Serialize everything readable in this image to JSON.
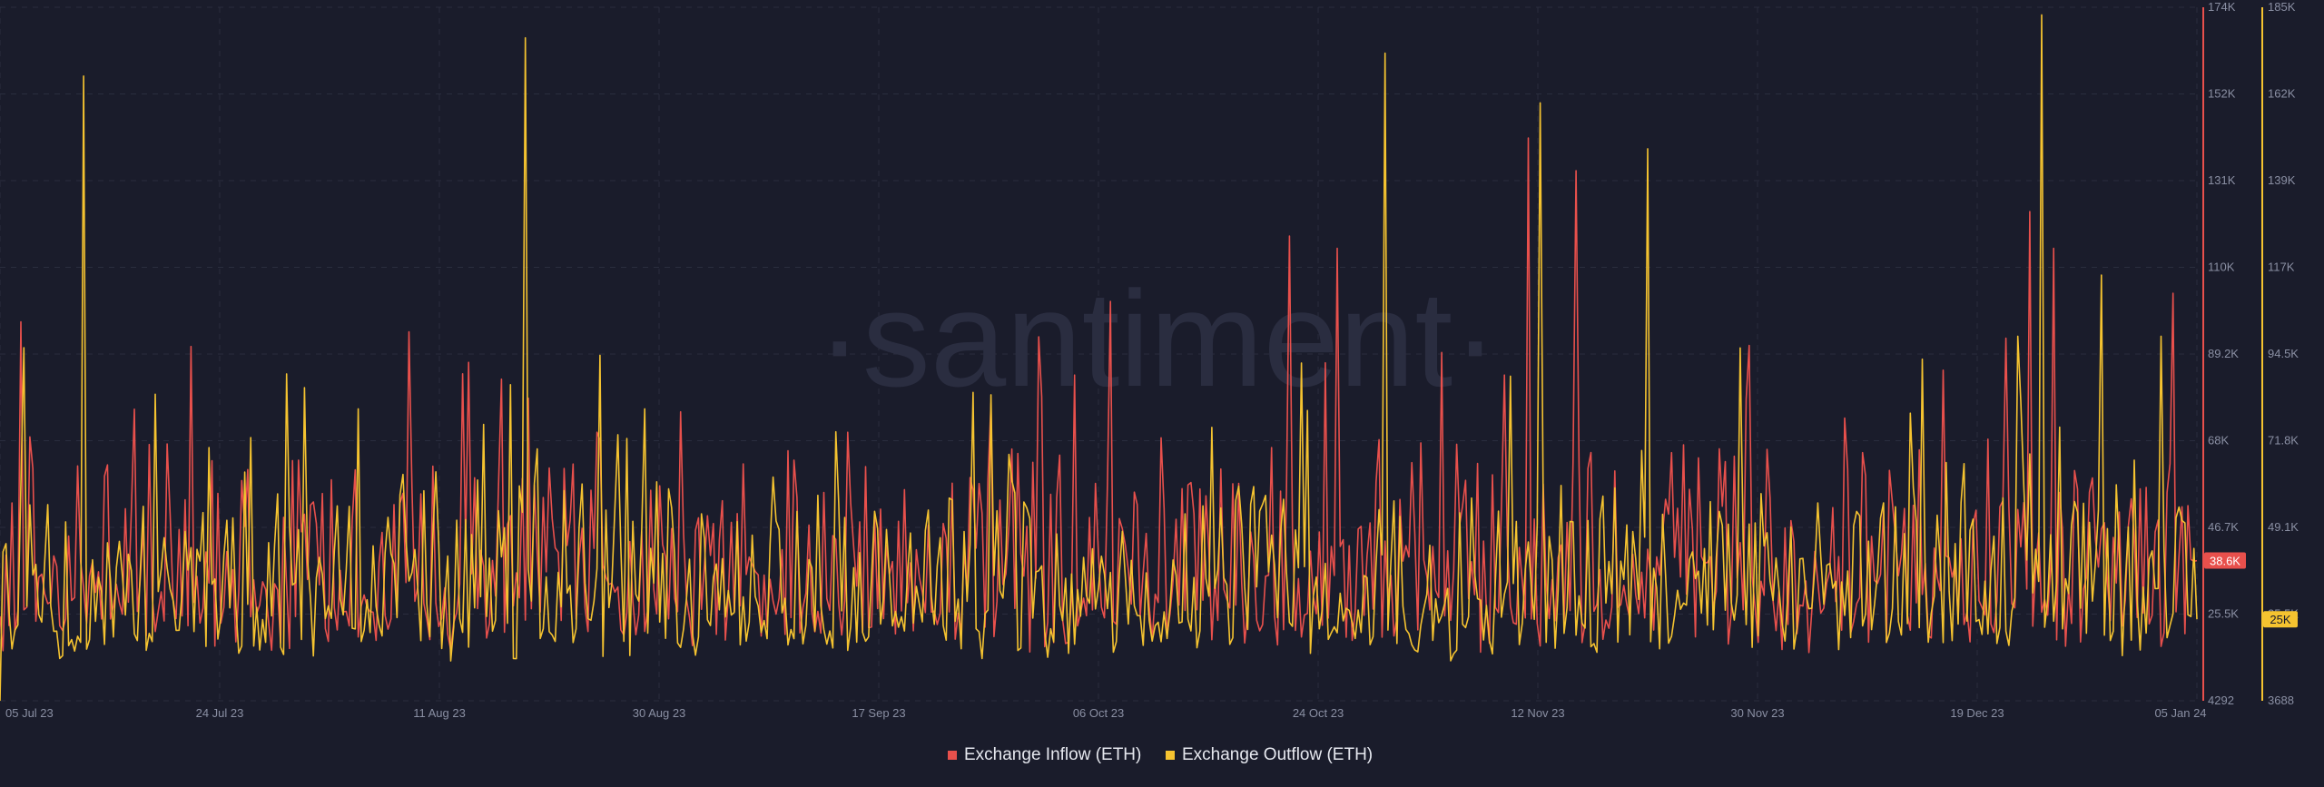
{
  "watermark": "·santiment·",
  "colors": {
    "background": "#1a1c2b",
    "grid": "#2a2d3e",
    "inflow": "#e8504c",
    "outflow": "#f5c330",
    "inflow_badge_text": "#ffffff",
    "outflow_badge_text": "#1a1c2b"
  },
  "chart_data": {
    "type": "line",
    "x_labels": [
      "05 Jul 23",
      "24 Jul 23",
      "11 Aug 23",
      "30 Aug 23",
      "17 Sep 23",
      "06 Oct 23",
      "24 Oct 23",
      "12 Nov 23",
      "30 Nov 23",
      "19 Dec 23",
      "05 Jan 24"
    ],
    "x_range": [
      "2023-07-05",
      "2024-01-05"
    ],
    "y_left": {
      "min": 4292,
      "max": 174000,
      "ticks": [
        "174K",
        "152K",
        "131K",
        "110K",
        "89.2K",
        "68K",
        "46.7K",
        "25.5K",
        "4292"
      ],
      "current_label": "38.6K"
    },
    "y_right": {
      "min": 3688,
      "max": 185000,
      "ticks": [
        "185K",
        "162K",
        "139K",
        "117K",
        "94.5K",
        "71.8K",
        "49.1K",
        "25.5K",
        "3688"
      ],
      "current_label": "25K"
    },
    "grid": true,
    "legend_position": "bottom-center",
    "series": [
      {
        "name": "Exchange Inflow (ETH)",
        "axis": "left",
        "color": "#e8504c",
        "peaks": [
          {
            "date": "2023-07-05",
            "value": 25000
          },
          {
            "date": "2023-07-14",
            "value": 62000
          },
          {
            "date": "2023-07-21",
            "value": 91000
          },
          {
            "date": "2023-08-01",
            "value": 55000
          },
          {
            "date": "2023-08-16",
            "value": 83000
          },
          {
            "date": "2023-08-24",
            "value": 70000
          },
          {
            "date": "2023-08-31",
            "value": 75000
          },
          {
            "date": "2023-09-14",
            "value": 70000
          },
          {
            "date": "2023-10-03",
            "value": 84000
          },
          {
            "date": "2023-10-06",
            "value": 102000
          },
          {
            "date": "2023-10-21",
            "value": 118000
          },
          {
            "date": "2023-10-24",
            "value": 87000
          },
          {
            "date": "2023-10-25",
            "value": 115000
          },
          {
            "date": "2023-11-08",
            "value": 84000
          },
          {
            "date": "2023-11-10",
            "value": 142000
          },
          {
            "date": "2023-11-14",
            "value": 134000
          },
          {
            "date": "2023-11-22",
            "value": 65000
          },
          {
            "date": "2023-12-08",
            "value": 65000
          },
          {
            "date": "2023-12-20",
            "value": 93000
          },
          {
            "date": "2023-12-22",
            "value": 124000
          },
          {
            "date": "2023-12-24",
            "value": 115000
          },
          {
            "date": "2024-01-03",
            "value": 104000
          },
          {
            "date": "2024-01-05",
            "value": 38600
          }
        ]
      },
      {
        "name": "Exchange Outflow (ETH)",
        "axis": "right",
        "color": "#f5c330",
        "peaks": [
          {
            "date": "2023-07-05",
            "value": 3688
          },
          {
            "date": "2023-07-07",
            "value": 96000
          },
          {
            "date": "2023-07-12",
            "value": 167000
          },
          {
            "date": "2023-08-04",
            "value": 80000
          },
          {
            "date": "2023-08-18",
            "value": 177000
          },
          {
            "date": "2023-08-28",
            "value": 80000
          },
          {
            "date": "2023-09-13",
            "value": 74000
          },
          {
            "date": "2023-10-22",
            "value": 92000
          },
          {
            "date": "2023-10-29",
            "value": 173000
          },
          {
            "date": "2023-11-11",
            "value": 160000
          },
          {
            "date": "2023-11-20",
            "value": 148000
          },
          {
            "date": "2023-12-13",
            "value": 93000
          },
          {
            "date": "2023-12-21",
            "value": 99000
          },
          {
            "date": "2023-12-23",
            "value": 183000
          },
          {
            "date": "2023-12-28",
            "value": 115000
          },
          {
            "date": "2024-01-02",
            "value": 99000
          },
          {
            "date": "2024-01-05",
            "value": 25000
          }
        ]
      }
    ]
  }
}
